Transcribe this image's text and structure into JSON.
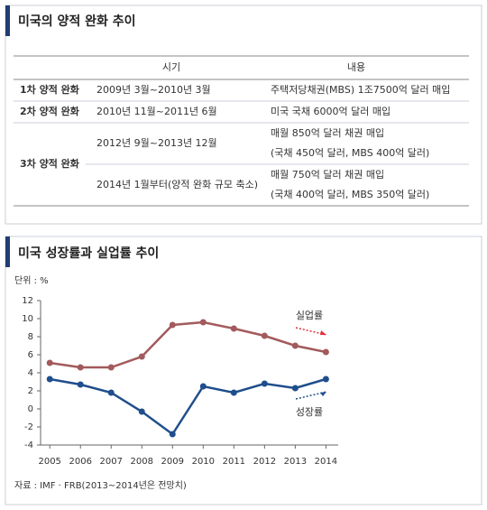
{
  "table": {
    "title": "미국의 양적 완화 추이",
    "columns": [
      "시기",
      "내용"
    ],
    "rows": [
      {
        "stage": "1차 양적 완화",
        "entries": [
          {
            "period": "2009년 3월~2010년 3월",
            "content": [
              "주택저당채권(MBS) 1조7500억 달러 매입"
            ]
          }
        ]
      },
      {
        "stage": "2차 양적 완화",
        "entries": [
          {
            "period": "2010년 11월~2011년 6월",
            "content": [
              "미국 국채 6000억 달러 매입"
            ]
          }
        ]
      },
      {
        "stage": "3차 양적 완화",
        "entries": [
          {
            "period": "2012년 9월~2013년 12월",
            "content": [
              "매월 850억 달러 채권 매입",
              "(국채 450억 달러, MBS 400억 달러)"
            ]
          },
          {
            "period": "2014년 1월부터(양적 완화 규모 축소)",
            "content": [
              "매월 750억 달러 채권 매입",
              "(국채 400억 달러, MBS 350억 달러)"
            ]
          }
        ]
      }
    ]
  },
  "chart_data": {
    "type": "line",
    "title": "미국 성장률과 실업률 추이",
    "unit_label": "단위 : %",
    "source": "자료 : IMF · FRB(2013~2014년은 전망치)",
    "x": [
      2005,
      2006,
      2007,
      2008,
      2009,
      2010,
      2011,
      2012,
      2013,
      2014
    ],
    "xlim": [
      2004.7,
      2014.4
    ],
    "xticks": [
      2005,
      2006,
      2007,
      2008,
      2009,
      2010,
      2011,
      2012,
      2013,
      2014
    ],
    "ylim": [
      -4,
      12
    ],
    "yticks": [
      -4,
      -2,
      0,
      2,
      4,
      6,
      8,
      10,
      12
    ],
    "grid": false,
    "series": [
      {
        "name": "실업률",
        "color": "#a35a5c",
        "values": [
          5.1,
          4.6,
          4.6,
          5.8,
          9.3,
          9.6,
          8.9,
          8.1,
          7.0,
          6.3
        ]
      },
      {
        "name": "성장률",
        "color": "#1f4e8c",
        "values": [
          3.3,
          2.7,
          1.8,
          -0.3,
          -2.8,
          2.5,
          1.8,
          2.8,
          2.3,
          3.3
        ]
      }
    ]
  }
}
